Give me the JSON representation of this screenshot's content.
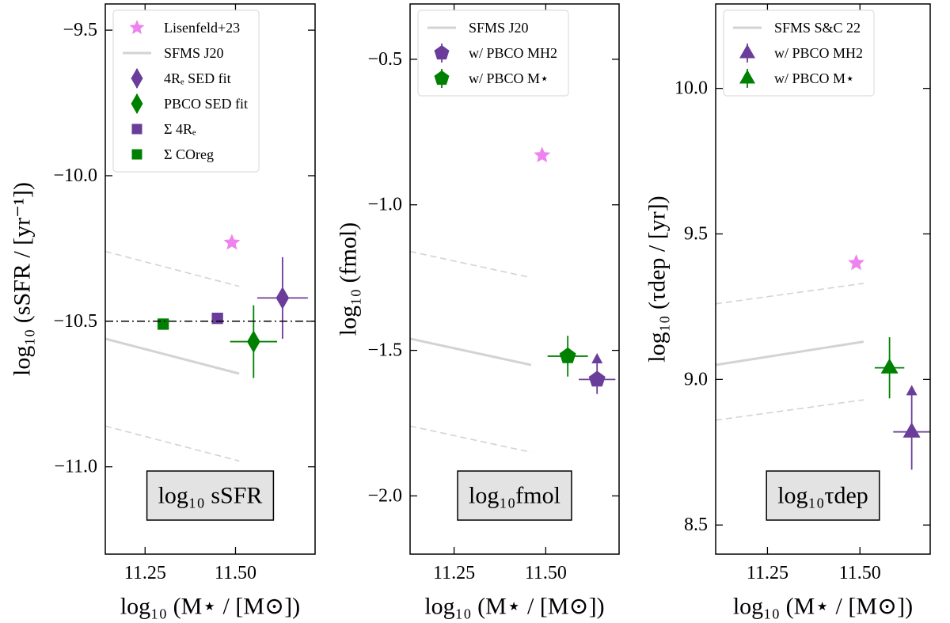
{
  "chart_data": [
    {
      "type": "scatter",
      "xlabel": "log₁₀ (M⋆ / [M⊙])",
      "ylabel": "log₁₀ (sSFR / [yr⁻¹])",
      "annotation": "log₁₀ sSFR",
      "xlim": [
        11.14,
        11.72
      ],
      "ylim": [
        -11.3,
        -9.41
      ],
      "xticks": [
        11.25,
        {
          "value": 11.5,
          "label": "11.50"
        }
      ],
      "yticks": [
        {
          "value": -9.5,
          "label": "−9.5"
        },
        {
          "value": -10.0,
          "label": "−10.0"
        },
        {
          "value": -10.5,
          "label": "−10.5"
        },
        {
          "value": -11.0,
          "label": "−11.0"
        }
      ],
      "legend": "upper left",
      "series": [
        {
          "name": "Lisenfeld+23",
          "color": "#ee82ee",
          "marker": "star",
          "x": [
            11.49
          ],
          "values": [
            -10.23
          ]
        },
        {
          "name": "SFMS J20",
          "type": "line",
          "color": "#d3d3d3",
          "linestyle": "solid",
          "x": [
            11.14,
            11.51
          ],
          "values": [
            -10.56,
            -10.68
          ]
        },
        {
          "name": "4Rₑ SED fit",
          "color": "#6a3d9a",
          "marker": "diamond",
          "x": [
            11.63
          ],
          "values": [
            -10.42
          ],
          "xerr": [
            0.07
          ],
          "yerr": [
            0.14
          ]
        },
        {
          "name": "PBCO SED fit",
          "color": "#008000",
          "marker": "diamond",
          "x": [
            11.55
          ],
          "values": [
            -10.57
          ],
          "xerr": [
            0.065
          ],
          "yerr": [
            0.125
          ]
        },
        {
          "name": "Σ 4Rₑ",
          "color": "#6a3d9a",
          "marker": "square",
          "x": [
            11.45
          ],
          "values": [
            -10.49
          ]
        },
        {
          "name": "Σ COreg",
          "color": "#008000",
          "marker": "square",
          "x": [
            11.3
          ],
          "values": [
            -10.51
          ]
        },
        {
          "type": "line",
          "color": "#d3d3d3",
          "linestyle": "dashed",
          "x": [
            11.14,
            11.51
          ],
          "values": [
            -10.26,
            -10.38
          ]
        },
        {
          "type": "line",
          "color": "#d3d3d3",
          "linestyle": "dashed",
          "x": [
            11.14,
            11.51
          ],
          "values": [
            -10.86,
            -10.98
          ]
        },
        {
          "type": "line",
          "color": "#000000",
          "linestyle": "dashdot",
          "x": [
            11.14,
            11.72
          ],
          "values": [
            -10.5,
            -10.5
          ]
        }
      ]
    },
    {
      "type": "scatter",
      "xlabel": "log₁₀ (M⋆ / [M⊙])",
      "ylabel": "log₁₀ (fmol)",
      "annotation": "log₁₀fmol",
      "xlim": [
        11.13,
        11.7
      ],
      "ylim": [
        -2.2,
        -0.31
      ],
      "xticks": [
        11.25,
        {
          "value": 11.5,
          "label": "11.50"
        }
      ],
      "yticks": [
        {
          "value": -0.5,
          "label": "−0.5"
        },
        {
          "value": -1.0,
          "label": "−1.0"
        },
        {
          "value": -1.5,
          "label": "−1.5"
        },
        {
          "value": -2.0,
          "label": "−2.0"
        }
      ],
      "legend": "upper left",
      "series": [
        {
          "name": "SFMS J20",
          "type": "line",
          "color": "#d3d3d3",
          "linestyle": "solid",
          "x": [
            11.13,
            11.46
          ],
          "values": [
            -1.46,
            -1.55
          ]
        },
        {
          "name": "w/ PBCO MH2",
          "color": "#6a3d9a",
          "marker": "pentagon",
          "x": [
            11.64
          ],
          "values": [
            -1.6
          ],
          "xerr": [
            0.05
          ],
          "yerr": [
            [
              0.05,
              0.08
            ]
          ],
          "arrow": "up"
        },
        {
          "name": "w/ PBCO M⋆",
          "color": "#008000",
          "marker": "pentagon",
          "x": [
            11.56
          ],
          "values": [
            -1.52
          ],
          "xerr": [
            0.055
          ],
          "yerr": [
            0.07
          ]
        },
        {
          "color": "#ee82ee",
          "marker": "star",
          "x": [
            11.49
          ],
          "values": [
            -0.83
          ]
        },
        {
          "type": "line",
          "color": "#d3d3d3",
          "linestyle": "dashed",
          "x": [
            11.13,
            11.46
          ],
          "values": [
            -1.16,
            -1.25
          ]
        },
        {
          "type": "line",
          "color": "#d3d3d3",
          "linestyle": "dashed",
          "x": [
            11.13,
            11.46
          ],
          "values": [
            -1.76,
            -1.85
          ]
        }
      ]
    },
    {
      "type": "scatter",
      "xlabel": "log₁₀ (M⋆ / [M⊙])",
      "ylabel": "log₁₀ (τdep / [yr])",
      "annotation": "log₁₀τdep",
      "xlim": [
        11.11,
        11.69
      ],
      "ylim": [
        8.4,
        10.29
      ],
      "xticks": [
        11.25,
        {
          "value": 11.5,
          "label": "11.50"
        }
      ],
      "yticks": [
        {
          "value": 10.0,
          "label": "10.0"
        },
        9.5,
        {
          "value": 9.0,
          "label": "9.0"
        },
        8.5
      ],
      "legend": "upper left",
      "series": [
        {
          "name": "SFMS S&C 22",
          "type": "line",
          "color": "#d3d3d3",
          "linestyle": "solid",
          "x": [
            11.11,
            11.51
          ],
          "values": [
            9.05,
            9.13
          ]
        },
        {
          "name": "w/ PBCO MH2",
          "color": "#6a3d9a",
          "marker": "triangle",
          "x": [
            11.64
          ],
          "values": [
            8.82
          ],
          "xerr": [
            0.05
          ],
          "yerr": [
            [
              0.13,
              0.15
            ]
          ],
          "arrow": "up"
        },
        {
          "name": "w/ PBCO M⋆",
          "color": "#008000",
          "marker": "triangle",
          "x": [
            11.58
          ],
          "values": [
            9.04
          ],
          "xerr": [
            0.04
          ],
          "yerr": [
            0.105
          ]
        },
        {
          "color": "#ee82ee",
          "marker": "star",
          "x": [
            11.49
          ],
          "values": [
            9.4
          ]
        },
        {
          "type": "line",
          "color": "#d3d3d3",
          "linestyle": "dashed",
          "x": [
            11.11,
            11.51
          ],
          "values": [
            9.26,
            9.33
          ]
        },
        {
          "type": "line",
          "color": "#d3d3d3",
          "linestyle": "dashed",
          "x": [
            11.11,
            11.51
          ],
          "values": [
            8.86,
            8.93
          ]
        }
      ]
    }
  ]
}
